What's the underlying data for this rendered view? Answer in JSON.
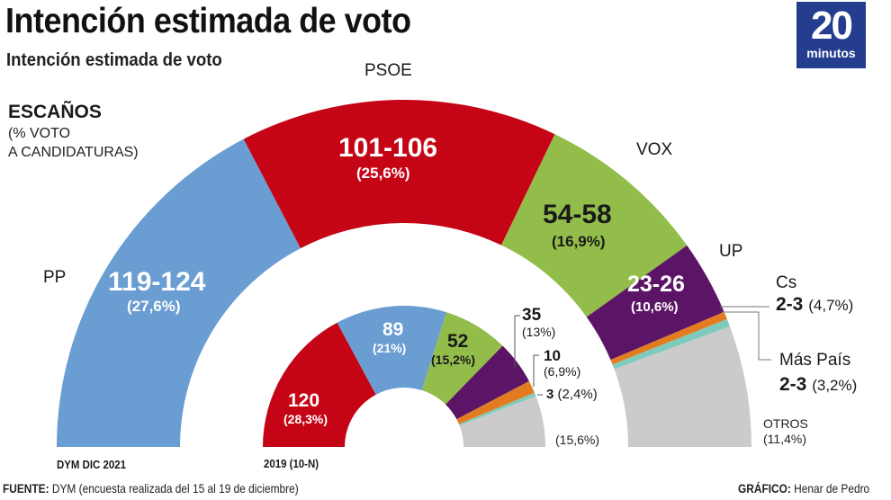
{
  "header": {
    "title": "Intención estimada de voto",
    "subtitle": "Intención estimada de voto",
    "logo_number": "20",
    "logo_word": "minutos"
  },
  "legend": {
    "title": "ESCAÑOS",
    "line1": "(% VOTO",
    "line2": "A CANDIDATURAS)"
  },
  "colors": {
    "PP": "#6a9dd2",
    "PSOE": "#c50515",
    "VOX": "#93bd4a",
    "UP": "#5c1566",
    "Cs": "#e37c21",
    "MasPais": "#7ecbbd",
    "OTROS": "#cbcbcb",
    "logo_bg": "#253d8f"
  },
  "chart_data": [
    {
      "type": "pie",
      "subtype": "semicircle-parliament",
      "label": "DYM DIC 2021",
      "total_seats": 350,
      "series": [
        {
          "name": "PP",
          "seats_label": "119-124",
          "seats": 121.5,
          "vote_label": "(27,6%)",
          "vote": 27.6
        },
        {
          "name": "PSOE",
          "seats_label": "101-106",
          "seats": 103.5,
          "vote_label": "(25,6%)",
          "vote": 25.6
        },
        {
          "name": "VOX",
          "seats_label": "54-58",
          "seats": 56,
          "vote_label": "(16,9%)",
          "vote": 16.9
        },
        {
          "name": "UP",
          "seats_label": "23-26",
          "seats": 24.5,
          "vote_label": "(10,6%)",
          "vote": 10.6
        },
        {
          "name": "Cs",
          "seats_label": "2-3",
          "seats": 2.5,
          "vote_label": "(4,7%)",
          "vote": 4.7
        },
        {
          "name": "Más País",
          "seats_label": "2-3",
          "seats": 2.5,
          "vote_label": "(3,2%)",
          "vote": 3.2
        },
        {
          "name": "OTROS",
          "seats_label": "",
          "seats": 39.5,
          "vote_label": "(11,4%)",
          "vote": 11.4
        }
      ]
    },
    {
      "type": "pie",
      "subtype": "semicircle-parliament",
      "label": "2019 (10-N)",
      "total_seats": 350,
      "series": [
        {
          "name": "PSOE",
          "seats_label": "120",
          "seats": 120,
          "vote_label": "(28,3%)",
          "vote": 28.3
        },
        {
          "name": "PP",
          "seats_label": "89",
          "seats": 89,
          "vote_label": "(21%)",
          "vote": 21
        },
        {
          "name": "VOX",
          "seats_label": "52",
          "seats": 52,
          "vote_label": "(15,2%)",
          "vote": 15.2
        },
        {
          "name": "UP",
          "seats_label": "35",
          "seats": 35,
          "vote_label": "(13%)",
          "vote": 13
        },
        {
          "name": "Cs",
          "seats_label": "10",
          "seats": 10,
          "vote_label": "(6,9%)",
          "vote": 6.9
        },
        {
          "name": "Más País",
          "seats_label": "3",
          "seats": 3,
          "vote_label": "(2,4%)",
          "vote": 2.4
        },
        {
          "name": "OTROS",
          "seats_label": "",
          "seats": 41,
          "vote_label": "(15,6%)",
          "vote": 15.6
        }
      ]
    }
  ],
  "labels": {
    "PP": "PP",
    "PSOE": "PSOE",
    "VOX": "VOX",
    "UP": "UP",
    "Cs": "Cs",
    "MasPais": "Más País",
    "OTROS": "OTROS"
  },
  "footer": {
    "source_label": "FUENTE:",
    "source_text": " DYM (encuesta realizada del 15 al 19 de diciembre)",
    "credit_label": "GRÁFICO:",
    "credit_text": " Henar de Pedro"
  }
}
